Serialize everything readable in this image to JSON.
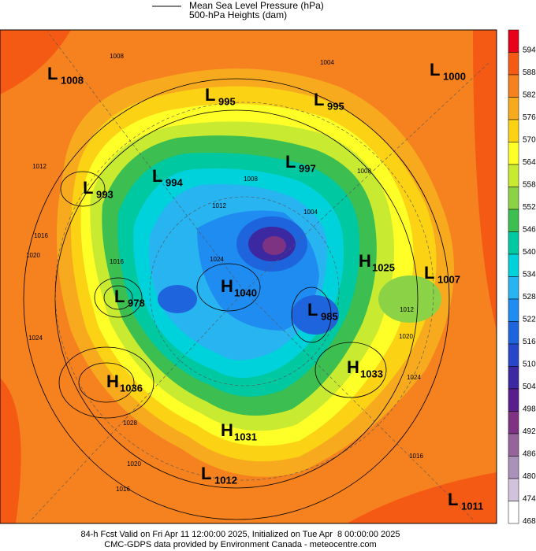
{
  "legend": {
    "lines": [
      "Mean Sea Level Pressure (hPa)",
      "500-hPa Heights (dam)"
    ]
  },
  "centers": [
    {
      "kind": "L",
      "value": 1008
    },
    {
      "kind": "L",
      "value": 995
    },
    {
      "kind": "L",
      "value": 995
    },
    {
      "kind": "L",
      "value": 1000
    },
    {
      "kind": "L",
      "value": 997
    },
    {
      "kind": "L",
      "value": 993
    },
    {
      "kind": "L",
      "value": 994
    },
    {
      "kind": "H",
      "value": 1025
    },
    {
      "kind": "L",
      "value": 1007
    },
    {
      "kind": "L",
      "value": 978
    },
    {
      "kind": "H",
      "value": 1040
    },
    {
      "kind": "L",
      "value": 985
    },
    {
      "kind": "H",
      "value": 1033
    },
    {
      "kind": "H",
      "value": 1036
    },
    {
      "kind": "H",
      "value": 1031
    },
    {
      "kind": "L",
      "value": 1012
    },
    {
      "kind": "L",
      "value": 1011
    }
  ],
  "contour_labels": [
    1008,
    1004,
    1012,
    1016,
    1008,
    1012,
    1024,
    1016,
    1024,
    1028,
    1020,
    1016,
    1016,
    1024,
    1020,
    1012,
    1004,
    1008,
    1020
  ],
  "colorbar": {
    "levels": [
      594,
      588,
      582,
      576,
      570,
      564,
      558,
      552,
      546,
      540,
      534,
      528,
      522,
      516,
      510,
      504,
      498,
      492,
      486,
      480,
      474,
      468
    ],
    "colors": [
      "#e8001a",
      "#f55a14",
      "#f5821e",
      "#f8aa1e",
      "#fbd214",
      "#ffff28",
      "#c8eb32",
      "#8cd246",
      "#3cbe50",
      "#00c8a0",
      "#00d2dc",
      "#28b4f0",
      "#1e8cf0",
      "#1e64dc",
      "#2846c8",
      "#3c28a0",
      "#5a1e8c",
      "#7d3282",
      "#96649b",
      "#aa91b9",
      "#d2c3dc",
      "#ffffff"
    ]
  },
  "footer": [
    "84-h Fcst Valid on Fri Apr 11 12:00:00 2025, Initialized on Tue Apr  8 00:00:00 2025",
    "CMC-GDPS data provided by Environment Canada - meteocentre.com"
  ]
}
